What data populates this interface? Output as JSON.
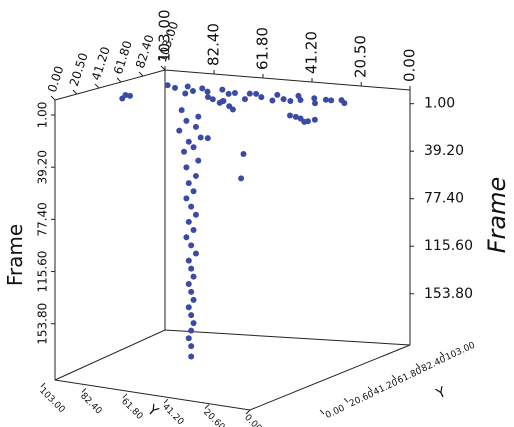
{
  "chart_data": {
    "type": "scatter3d",
    "color": "#3b4ba5",
    "zlabel": "Frame",
    "ylabel": "Y",
    "xlim": [
      0,
      103
    ],
    "ylim": [
      0,
      103
    ],
    "zlim": [
      -10,
      195
    ],
    "xticks": [
      {
        "value": 103,
        "label": "103.00"
      },
      {
        "value": 82.4,
        "label": "82.40"
      },
      {
        "value": 61.8,
        "label": "61.80"
      },
      {
        "value": 41.2,
        "label": "41.20"
      },
      {
        "value": 20.5,
        "label": "20.50"
      },
      {
        "value": 0,
        "label": "0.00"
      }
    ],
    "yticks": [
      {
        "value": 0,
        "label": "0.00"
      },
      {
        "value": 20.5,
        "label": "20.50"
      },
      {
        "value": 41.2,
        "label": "41.20"
      },
      {
        "value": 61.8,
        "label": "61.80"
      },
      {
        "value": 82.4,
        "label": "82.40"
      },
      {
        "value": 103,
        "label": "103.00"
      }
    ],
    "zticks": [
      {
        "value": 1,
        "label": "1.00"
      },
      {
        "value": 39.2,
        "label": "39.20"
      },
      {
        "value": 77.4,
        "label": "77.40"
      },
      {
        "value": 115.6,
        "label": "115.60"
      },
      {
        "value": 153.8,
        "label": "153.80"
      }
    ],
    "bottom_left_ticks": [
      {
        "value": 103,
        "label": "103.00"
      },
      {
        "value": 82.4,
        "label": "82.40"
      },
      {
        "value": 61.8,
        "label": "61.80"
      },
      {
        "value": 41.2,
        "label": "41.20"
      },
      {
        "value": 20.6,
        "label": "20.60"
      },
      {
        "value": 0,
        "label": "0.00"
      }
    ],
    "bottom_right_ticks": [
      {
        "value": 0,
        "label": "0.00"
      },
      {
        "value": 20.6,
        "label": "20.60"
      },
      {
        "value": 41.2,
        "label": "41.20"
      },
      {
        "value": 61.8,
        "label": "61.80"
      },
      {
        "value": 82.4,
        "label": "82.40"
      },
      {
        "value": 103,
        "label": "103.00"
      }
    ],
    "x": [
      101,
      97,
      93,
      89,
      86,
      82,
      78,
      74,
      70,
      66,
      62,
      58,
      54,
      50,
      46,
      42,
      38,
      34,
      30,
      27,
      24,
      64,
      52,
      80,
      44,
      72,
      90,
      35,
      103,
      103,
      102,
      80,
      78,
      76,
      82,
      74,
      46,
      44,
      48,
      42,
      50,
      40,
      71,
      70,
      85,
      96,
      89,
      94,
      90,
      97,
      88,
      93,
      91,
      95,
      89,
      94,
      90,
      93,
      91,
      94,
      92,
      90,
      93,
      91,
      94,
      92,
      90,
      93,
      92,
      91,
      93,
      92,
      91,
      93,
      92,
      91,
      92,
      93,
      92,
      92
    ],
    "y": [
      101,
      99,
      102,
      98,
      100,
      96,
      101,
      98,
      95,
      100,
      97,
      93,
      99,
      96,
      101,
      94,
      98,
      100,
      96,
      99,
      95,
      91,
      90,
      92,
      89,
      88,
      93,
      92,
      66,
      63,
      68,
      103,
      102,
      103,
      101,
      102,
      103,
      102,
      103,
      101,
      102,
      103,
      103,
      103,
      103,
      103,
      103,
      103,
      103,
      103,
      103,
      103,
      103,
      103,
      103,
      103,
      103,
      103,
      103,
      103,
      103,
      103,
      103,
      103,
      103,
      103,
      103,
      103,
      103,
      103,
      103,
      103,
      103,
      103,
      103,
      103,
      103,
      103,
      103,
      103
    ],
    "z": [
      1,
      2,
      1,
      3,
      1,
      2,
      1,
      3,
      1,
      2,
      1,
      2,
      1,
      3,
      1,
      2,
      1,
      2,
      1,
      1,
      2,
      4,
      3,
      5,
      2,
      6,
      4,
      3,
      1,
      3,
      2,
      12,
      10,
      14,
      9,
      16,
      19,
      21,
      18,
      20,
      17,
      19,
      69,
      50,
      40,
      20,
      24,
      28,
      32,
      36,
      40,
      44,
      48,
      52,
      58,
      64,
      70,
      76,
      82,
      88,
      94,
      100,
      106,
      112,
      118,
      124,
      130,
      136,
      142,
      148,
      154,
      160,
      166,
      172,
      178,
      184,
      190,
      196,
      202,
      210
    ]
  }
}
